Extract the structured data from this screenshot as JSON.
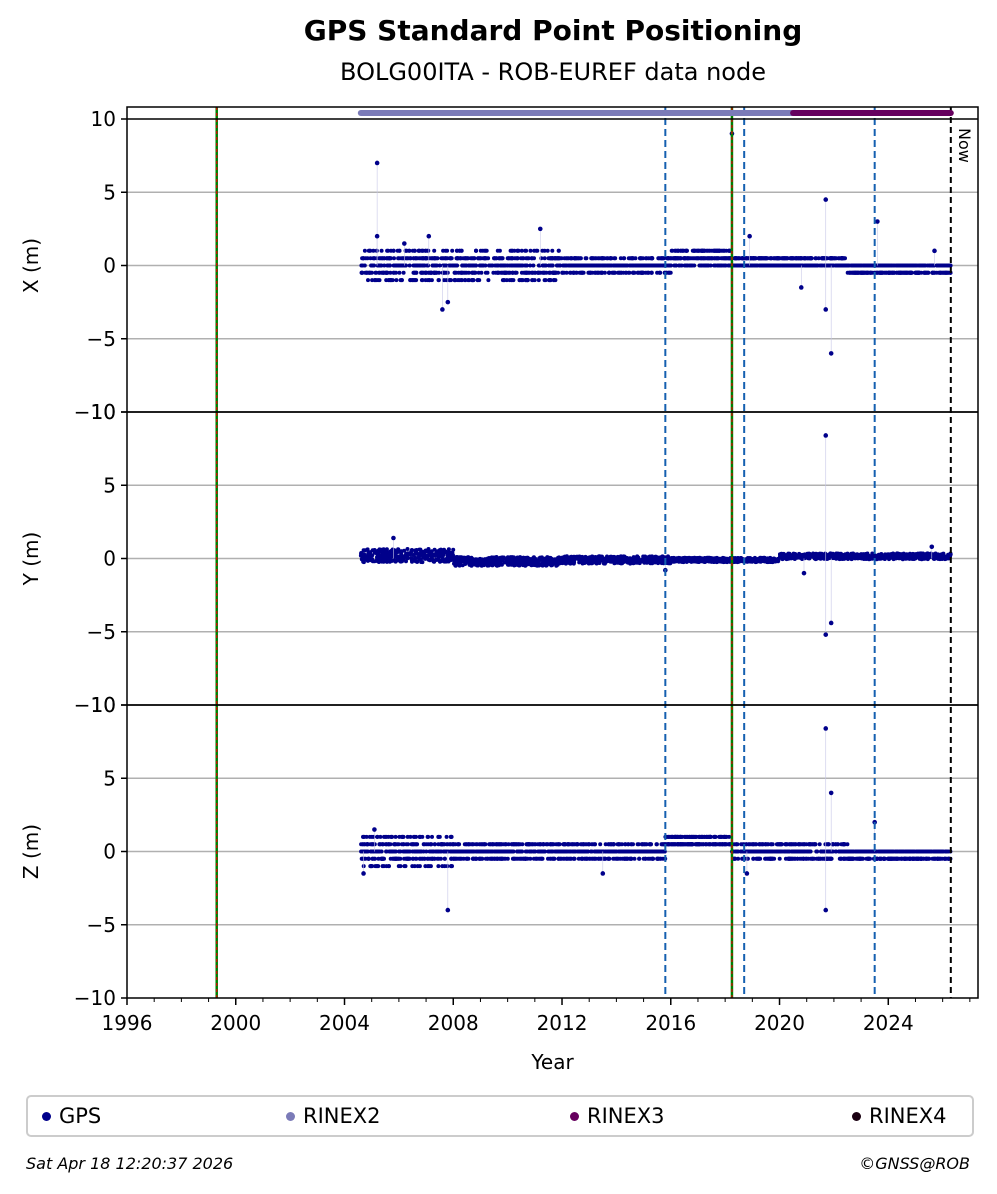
{
  "title": "GPS Standard Point Positioning",
  "subtitle": "BOLG00ITA - ROB-EUREF data node",
  "footer": {
    "timestamp": "Sat Apr 18 12:20:37 2026",
    "credit": "©GNSS@ROB"
  },
  "legend": [
    {
      "label": "GPS",
      "color": "#00008b"
    },
    {
      "label": "RINEX2",
      "color": "#7b7bb8"
    },
    {
      "label": "RINEX3",
      "color": "#66005e"
    },
    {
      "label": "RINEX4",
      "color": "#1a0011"
    }
  ],
  "chart_data": {
    "type": "scatter",
    "xlabel": "Year",
    "xlim": [
      1996,
      2027.3
    ],
    "xticks": [
      1996,
      2000,
      2004,
      2008,
      2012,
      2016,
      2020,
      2024
    ],
    "yticks": [
      10,
      5,
      0,
      -5,
      -10
    ],
    "ylim": [
      -10,
      10
    ],
    "now_label": "Now",
    "now_year": 2026.3,
    "vlines_receiver_change": [
      1999.3,
      2018.25
    ],
    "vlines_equipment_change": [
      2015.8,
      2018.7,
      2023.5
    ],
    "rinex_coverage": [
      {
        "name": "RINEX2",
        "from": 2004.6,
        "to": 2020.5
      },
      {
        "name": "RINEX3",
        "from": 2020.5,
        "to": 2026.3
      }
    ],
    "panels": [
      {
        "ylabel": "X (m)",
        "segments": [
          {
            "from": 2004.6,
            "to": 2008.0,
            "center": 0.0,
            "spread": 1.0,
            "quantized": true
          },
          {
            "from": 2008.0,
            "to": 2012.0,
            "center": 0.0,
            "spread": 1.0,
            "quantized": true
          },
          {
            "from": 2012.0,
            "to": 2016.0,
            "center": 0.0,
            "spread": 0.5,
            "quantized": true
          },
          {
            "from": 2016.0,
            "to": 2018.25,
            "center": 0.5,
            "spread": 0.5,
            "quantized": true
          },
          {
            "from": 2018.25,
            "to": 2022.5,
            "center": 0.25,
            "spread": 0.5,
            "quantized": true
          },
          {
            "from": 2022.5,
            "to": 2026.3,
            "center": -0.25,
            "spread": 0.5,
            "quantized": true
          }
        ],
        "outliers": [
          {
            "x": 2005.2,
            "y": 7.0
          },
          {
            "x": 2005.2,
            "y": 2.0
          },
          {
            "x": 2006.2,
            "y": 1.5
          },
          {
            "x": 2007.1,
            "y": 2.0
          },
          {
            "x": 2007.6,
            "y": -3.0
          },
          {
            "x": 2007.8,
            "y": -2.5
          },
          {
            "x": 2011.2,
            "y": 2.5
          },
          {
            "x": 2018.25,
            "y": 9.0
          },
          {
            "x": 2018.9,
            "y": 2.0
          },
          {
            "x": 2020.8,
            "y": -1.5
          },
          {
            "x": 2021.7,
            "y": 4.5
          },
          {
            "x": 2021.7,
            "y": -3.0
          },
          {
            "x": 2021.9,
            "y": -6.0
          },
          {
            "x": 2023.6,
            "y": 3.0
          },
          {
            "x": 2025.7,
            "y": 1.0
          }
        ]
      },
      {
        "ylabel": "Y (m)",
        "segments": [
          {
            "from": 2004.6,
            "to": 2008.0,
            "center": 0.2,
            "spread": 0.45,
            "quantized": false
          },
          {
            "from": 2008.0,
            "to": 2012.0,
            "center": -0.2,
            "spread": 0.3,
            "quantized": false
          },
          {
            "from": 2012.0,
            "to": 2016.0,
            "center": -0.1,
            "spread": 0.25,
            "quantized": false
          },
          {
            "from": 2016.0,
            "to": 2020.0,
            "center": -0.1,
            "spread": 0.15,
            "quantized": false
          },
          {
            "from": 2020.0,
            "to": 2026.3,
            "center": 0.15,
            "spread": 0.2,
            "quantized": false
          }
        ],
        "outliers": [
          {
            "x": 2005.8,
            "y": 1.4
          },
          {
            "x": 2015.8,
            "y": -0.8
          },
          {
            "x": 2020.9,
            "y": -1.0
          },
          {
            "x": 2021.7,
            "y": 8.4
          },
          {
            "x": 2021.7,
            "y": -5.2
          },
          {
            "x": 2021.9,
            "y": -4.4
          },
          {
            "x": 2025.6,
            "y": 0.8
          }
        ]
      },
      {
        "ylabel": "Z (m)",
        "segments": [
          {
            "from": 2004.6,
            "to": 2008.0,
            "center": 0.0,
            "spread": 1.0,
            "quantized": true
          },
          {
            "from": 2008.0,
            "to": 2012.0,
            "center": 0.0,
            "spread": 0.5,
            "quantized": true
          },
          {
            "from": 2012.0,
            "to": 2015.8,
            "center": 0.0,
            "spread": 0.5,
            "quantized": true
          },
          {
            "from": 2015.8,
            "to": 2018.25,
            "center": 0.75,
            "spread": 0.5,
            "quantized": true
          },
          {
            "from": 2018.25,
            "to": 2022.5,
            "center": 0.0,
            "spread": 0.5,
            "quantized": true
          },
          {
            "from": 2022.5,
            "to": 2026.3,
            "center": -0.25,
            "spread": 0.5,
            "quantized": true
          }
        ],
        "outliers": [
          {
            "x": 2004.7,
            "y": -1.5
          },
          {
            "x": 2005.1,
            "y": 1.5
          },
          {
            "x": 2007.8,
            "y": -4.0
          },
          {
            "x": 2013.5,
            "y": -1.5
          },
          {
            "x": 2018.8,
            "y": -1.5
          },
          {
            "x": 2021.7,
            "y": 8.4
          },
          {
            "x": 2021.7,
            "y": -4.0
          },
          {
            "x": 2021.9,
            "y": 4.0
          },
          {
            "x": 2023.5,
            "y": 2.0
          }
        ]
      }
    ]
  }
}
